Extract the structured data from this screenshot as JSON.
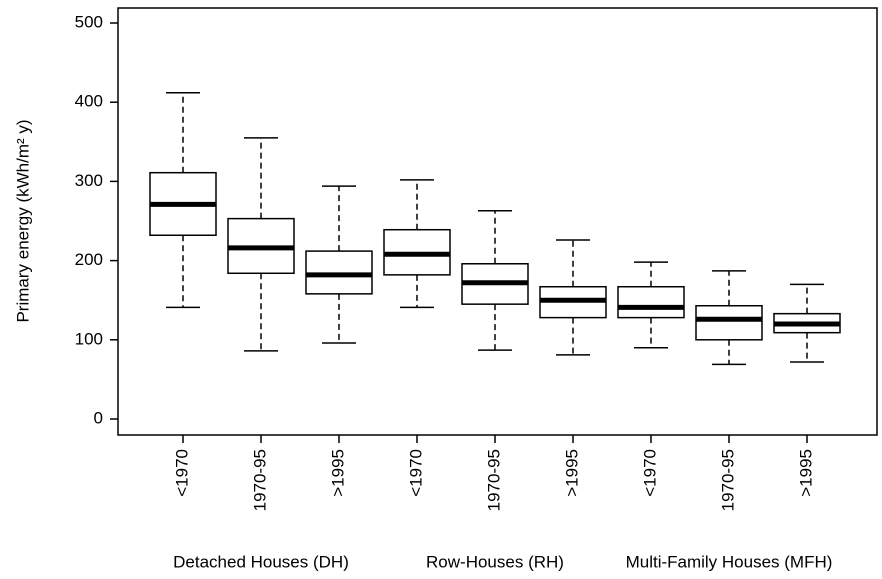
{
  "chart_data": {
    "type": "box",
    "y_label": "Primary energy (kWh/m² y)",
    "ylim": [
      0,
      500
    ],
    "yticks": [
      0,
      100,
      200,
      300,
      400,
      500
    ],
    "groups": [
      {
        "name": "Detached Houses  (DH)",
        "categories": [
          "<1970",
          "1970-95",
          ">1995"
        ],
        "boxes": [
          {
            "min": 141,
            "q1": 232,
            "median": 271,
            "q3": 311,
            "max": 412
          },
          {
            "min": 86,
            "q1": 184,
            "median": 216,
            "q3": 253,
            "max": 355
          },
          {
            "min": 96,
            "q1": 158,
            "median": 182,
            "q3": 212,
            "max": 294
          }
        ]
      },
      {
        "name": "Row-Houses (RH)",
        "categories": [
          "<1970",
          "1970-95",
          ">1995"
        ],
        "boxes": [
          {
            "min": 141,
            "q1": 182,
            "median": 208,
            "q3": 239,
            "max": 302
          },
          {
            "min": 87,
            "q1": 145,
            "median": 172,
            "q3": 196,
            "max": 263
          },
          {
            "min": 81,
            "q1": 128,
            "median": 150,
            "q3": 167,
            "max": 226
          }
        ]
      },
      {
        "name": "Multi-Family Houses (MFH)",
        "categories": [
          "<1970",
          "1970-95",
          ">1995"
        ],
        "boxes": [
          {
            "min": 90,
            "q1": 128,
            "median": 141,
            "q3": 167,
            "max": 198
          },
          {
            "min": 69,
            "q1": 100,
            "median": 126,
            "q3": 143,
            "max": 187
          },
          {
            "min": 72,
            "q1": 109,
            "median": 120,
            "q3": 133,
            "max": 170
          }
        ]
      }
    ]
  }
}
